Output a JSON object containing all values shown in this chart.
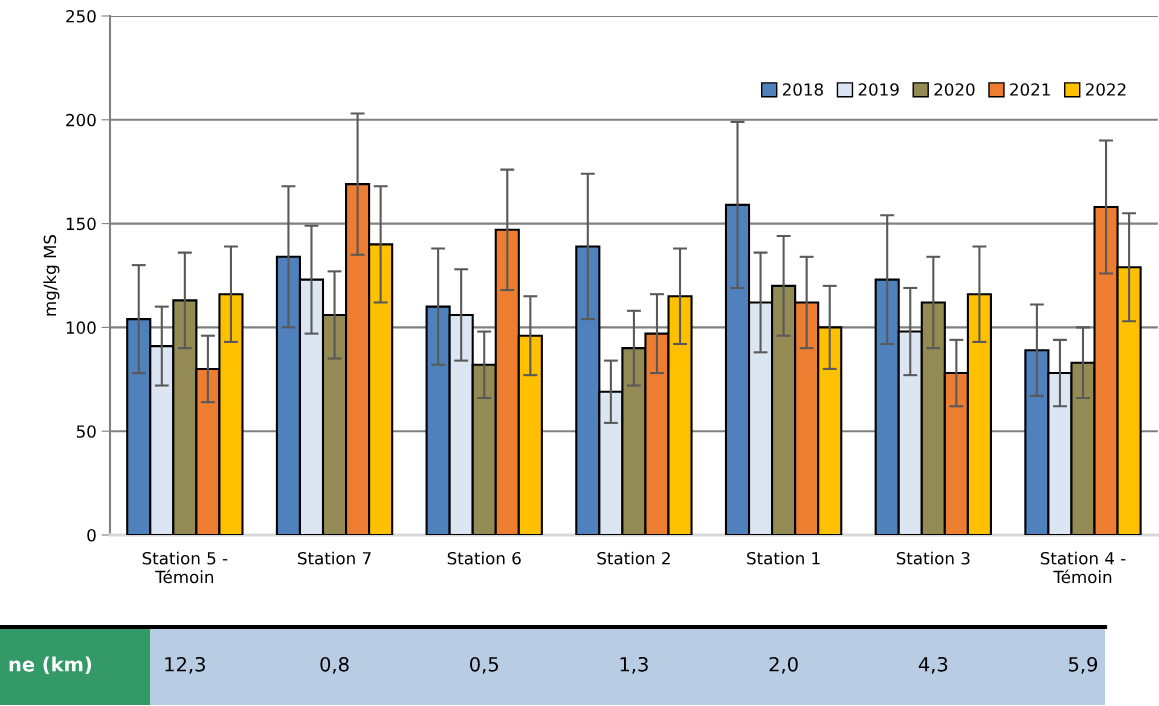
{
  "chart_data": {
    "type": "bar",
    "ylabel": "mg/kg MS",
    "categories": [
      "Station 5 - Témoin",
      "Station 7",
      "Station 6",
      "Station 2",
      "Station 1",
      "Station 3",
      "Station 4 - Témoin"
    ],
    "series": [
      {
        "name": "2018",
        "color": "#4f81bd",
        "values": [
          104,
          134,
          110,
          139,
          159,
          123,
          89
        ],
        "errors": [
          26,
          34,
          28,
          35,
          40,
          31,
          22
        ]
      },
      {
        "name": "2019",
        "color": "#dce6f2",
        "values": [
          91,
          123,
          106,
          69,
          112,
          98,
          78
        ],
        "errors": [
          19,
          26,
          22,
          15,
          24,
          21,
          16
        ]
      },
      {
        "name": "2020",
        "color": "#948a54",
        "values": [
          113,
          106,
          82,
          90,
          120,
          112,
          83
        ],
        "errors": [
          23,
          21,
          16,
          18,
          24,
          22,
          17
        ]
      },
      {
        "name": "2021",
        "color": "#ed7d31",
        "values": [
          80,
          169,
          147,
          97,
          112,
          78,
          158
        ],
        "errors": [
          16,
          34,
          29,
          19,
          22,
          16,
          32
        ]
      },
      {
        "name": "2022",
        "color": "#ffc000",
        "values": [
          116,
          140,
          96,
          115,
          100,
          116,
          129
        ],
        "errors": [
          23,
          28,
          19,
          23,
          20,
          23,
          26
        ]
      }
    ],
    "ylim": [
      0,
      250
    ],
    "yticks": [
      0,
      50,
      100,
      150,
      200,
      250
    ],
    "grid": "y",
    "legend": "top right",
    "annotations": [
      "ne (km)",
      "12,3",
      "0,8",
      "0,5",
      "1,3",
      "2,0",
      "4,3",
      "5,9"
    ]
  }
}
